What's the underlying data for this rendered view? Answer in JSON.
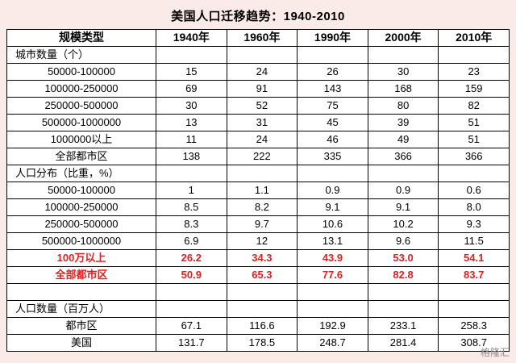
{
  "title": "美国人口迁移趋势：1940-2010",
  "watermark": "格隆汇",
  "colors": {
    "page_bg": "#fbebe8",
    "table_bg": "#ffffff",
    "border": "#000000",
    "highlight_red": "#e01f1f",
    "watermark_gray": "#8b8b8b"
  },
  "chart_data": {
    "type": "table",
    "title": "美国人口迁移趋势：1940-2010",
    "columns": [
      "规模类型",
      "1940年",
      "1960年",
      "1990年",
      "2000年",
      "2010年"
    ],
    "rows": [
      {
        "label": "城市数量（个）",
        "values": [
          "",
          "",
          "",
          "",
          ""
        ],
        "style": "section"
      },
      {
        "label": "50000-100000",
        "values": [
          "15",
          "24",
          "26",
          "30",
          "23"
        ],
        "style": "data"
      },
      {
        "label": "100000-250000",
        "values": [
          "69",
          "91",
          "143",
          "168",
          "159"
        ],
        "style": "data"
      },
      {
        "label": "250000-500000",
        "values": [
          "30",
          "52",
          "75",
          "80",
          "82"
        ],
        "style": "data"
      },
      {
        "label": "500000-1000000",
        "values": [
          "13",
          "31",
          "45",
          "39",
          "51"
        ],
        "style": "data"
      },
      {
        "label": "1000000以上",
        "values": [
          "11",
          "24",
          "46",
          "49",
          "51"
        ],
        "style": "data"
      },
      {
        "label": "全部都市区",
        "values": [
          "138",
          "222",
          "335",
          "366",
          "366"
        ],
        "style": "data"
      },
      {
        "label": "人口分布（比重，%）",
        "values": [
          "",
          "",
          "",
          "",
          ""
        ],
        "style": "section"
      },
      {
        "label": "50000-100000",
        "values": [
          "1",
          "1.1",
          "0.9",
          "0.9",
          "0.6"
        ],
        "style": "data"
      },
      {
        "label": "100000-250000",
        "values": [
          "8.5",
          "8.2",
          "9.1",
          "9.1",
          "8.0"
        ],
        "style": "data"
      },
      {
        "label": "250000-500000",
        "values": [
          "8.3",
          "9.7",
          "10.6",
          "10.2",
          "9.3"
        ],
        "style": "data"
      },
      {
        "label": "500000-1000000",
        "values": [
          "6.9",
          "12",
          "13.1",
          "9.6",
          "11.5"
        ],
        "style": "data"
      },
      {
        "label": "100万以上",
        "values": [
          "26.2",
          "34.3",
          "43.9",
          "53.0",
          "54.1"
        ],
        "style": "highlight"
      },
      {
        "label": "全部都市区",
        "values": [
          "50.9",
          "65.3",
          "77.6",
          "82.8",
          "83.7"
        ],
        "style": "highlight"
      },
      {
        "label": "",
        "values": [
          "",
          "",
          "",
          "",
          ""
        ],
        "style": "spacer"
      },
      {
        "label": "人口数量（百万人）",
        "values": [
          "",
          "",
          "",
          "",
          ""
        ],
        "style": "section"
      },
      {
        "label": "都市区",
        "values": [
          "67.1",
          "116.6",
          "192.9",
          "233.1",
          "258.3"
        ],
        "style": "data"
      },
      {
        "label": "美国",
        "values": [
          "131.7",
          "178.5",
          "248.7",
          "281.4",
          "308.7"
        ],
        "style": "data"
      }
    ]
  }
}
